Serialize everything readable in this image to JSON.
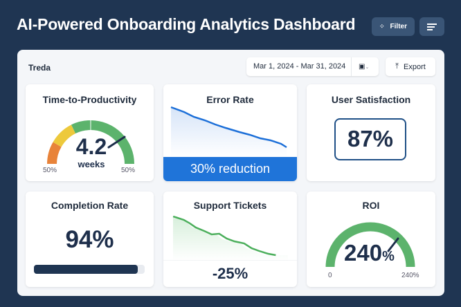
{
  "header": {
    "title": "AI-Powered Onboarding Analytics Dashboard",
    "filter_label": "Filter",
    "filter_icon": "filter-icon",
    "menu_icon": "menu-lines-icon"
  },
  "toolbar": {
    "brand": "Treda",
    "date_range": "Mar 1, 2024 - Mar 31, 2024",
    "calendar_icon": "calendar-icon",
    "export_label": "Export",
    "export_icon": "upload-icon"
  },
  "cards": {
    "time_to_productivity": {
      "title": "Time-to-Productivity",
      "value": "4.2",
      "unit": "weeks",
      "min_label": "50%",
      "max_label": "50%",
      "colors": [
        "#e8833a",
        "#edc93c",
        "#5cb36c"
      ]
    },
    "error_rate": {
      "title": "Error Rate",
      "banner": "30% reduction",
      "line_color": "#1c6fd8",
      "banner_color": "#1f74d9"
    },
    "user_satisfaction": {
      "title": "User Satisfaction",
      "value": "87%"
    },
    "completion_rate": {
      "title": "Completion Rate",
      "value": "94%",
      "progress": 0.94
    },
    "support_tickets": {
      "title": "Support Tickets",
      "change": "-25%",
      "line_color": "#4caf5c"
    },
    "roi": {
      "title": "ROI",
      "value": "240",
      "unit": "%",
      "min_label": "0",
      "max_label": "240%",
      "color": "#5cb36c"
    }
  }
}
